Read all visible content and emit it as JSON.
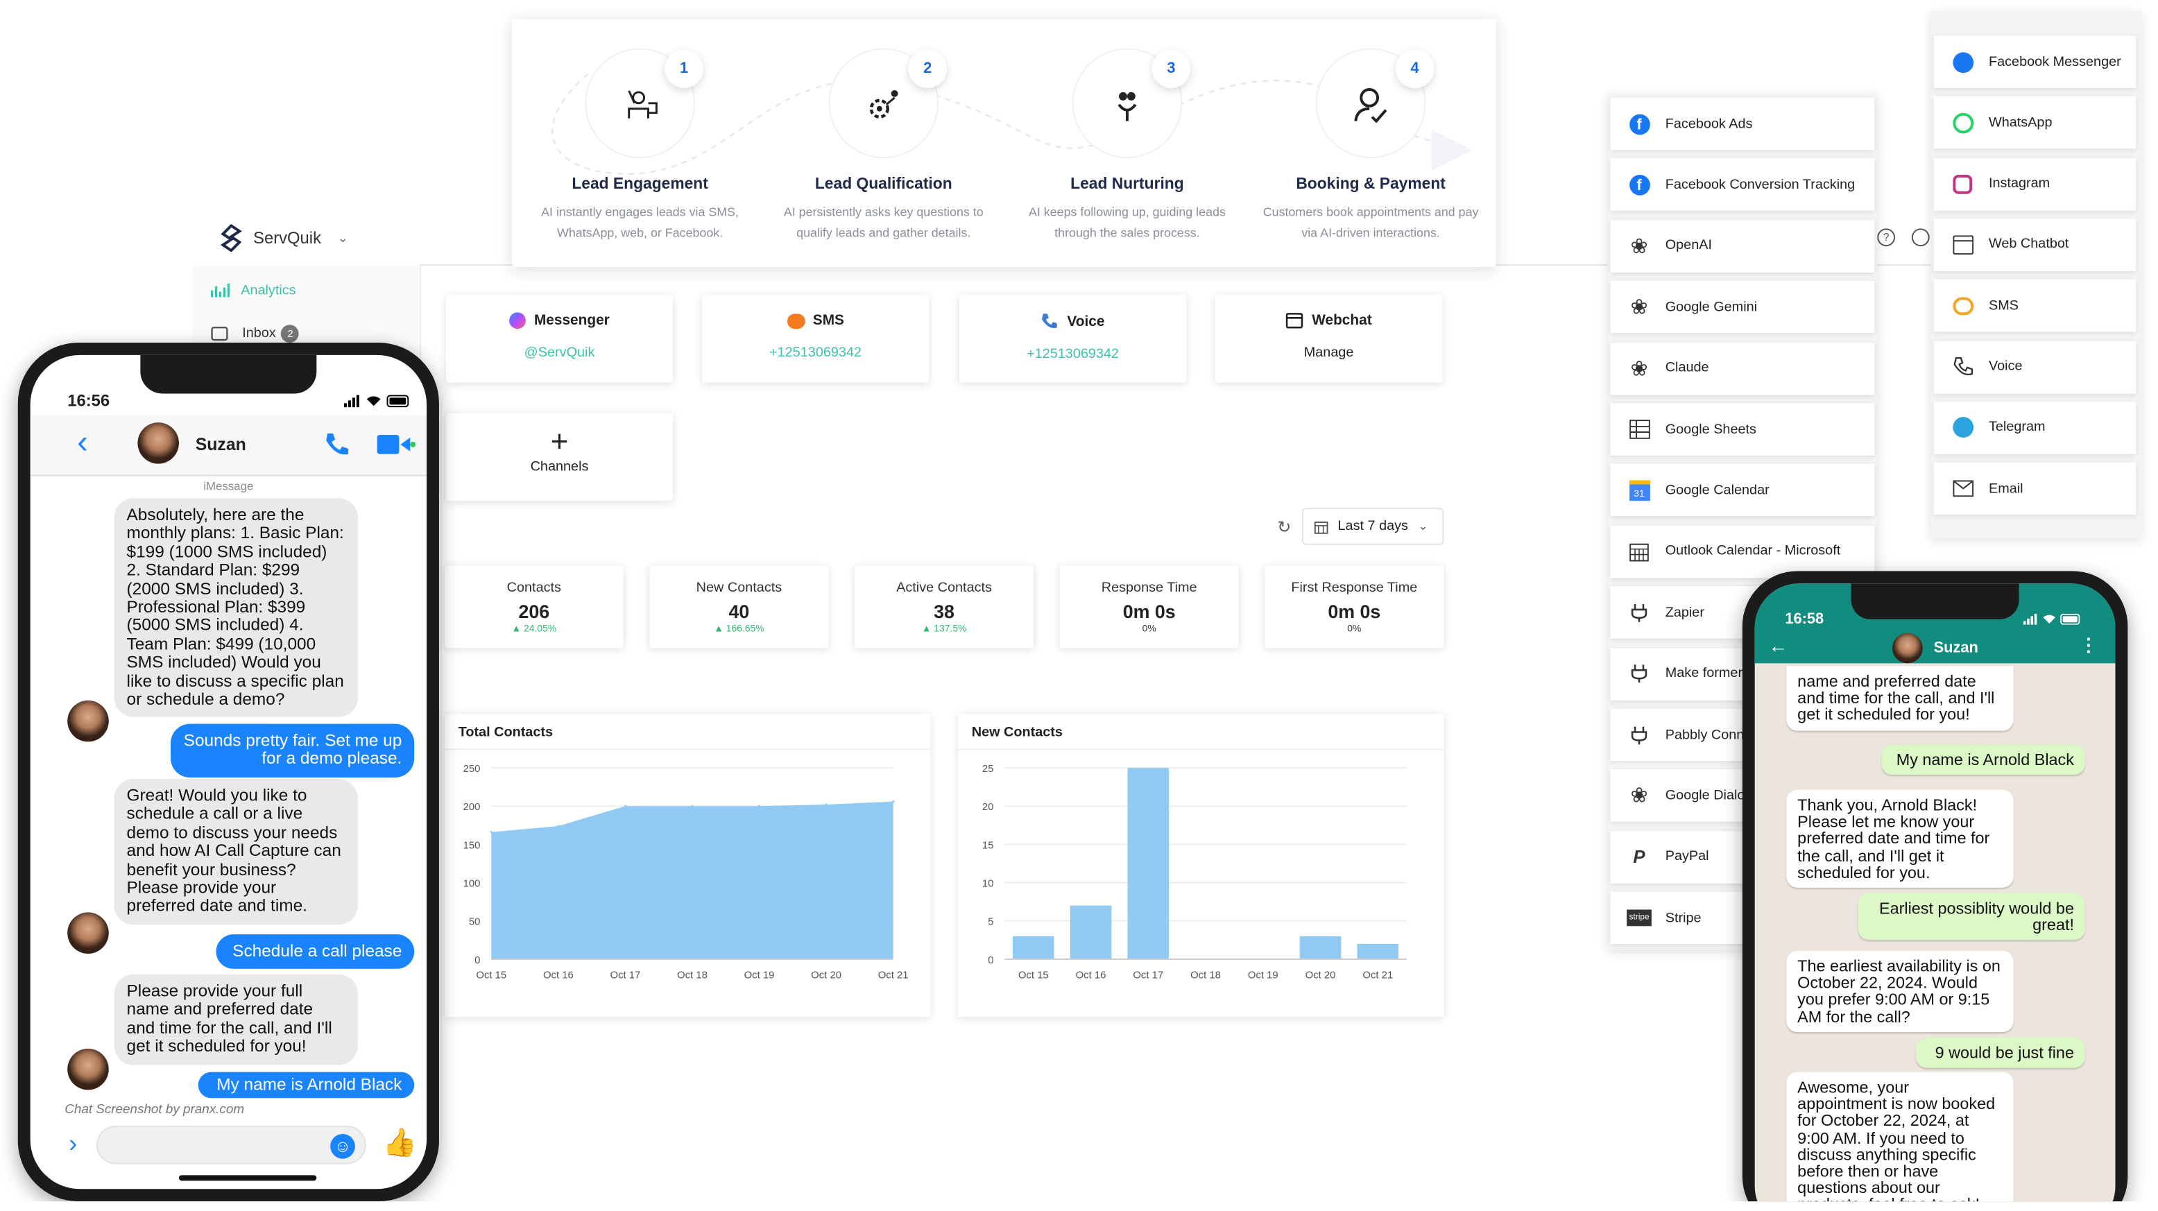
{
  "flow": {
    "steps": [
      {
        "num": "1",
        "title": "Lead Engagement",
        "desc": "AI instantly engages leads via SMS, WhatsApp, web, or Facebook."
      },
      {
        "num": "2",
        "title": "Lead Qualification",
        "desc": "AI persistently asks key questions to qualify leads and gather details."
      },
      {
        "num": "3",
        "title": "Lead Nurturing",
        "desc": "AI keeps following up, guiding leads through the sales process."
      },
      {
        "num": "4",
        "title": "Booking & Payment",
        "desc": "Customers book appointments and pay via AI-driven interactions."
      }
    ]
  },
  "app": {
    "brand": "ServQuik",
    "nav": {
      "analytics": "Analytics",
      "inbox": "Inbox",
      "inbox_badge": "2"
    }
  },
  "channels": [
    {
      "name": "Messenger",
      "value": "@ServQuik",
      "icon": "messenger-icon"
    },
    {
      "name": "SMS",
      "value": "+12513069342",
      "icon": "sms-icon"
    },
    {
      "name": "Voice",
      "value": "+12513069342",
      "icon": "phone-icon"
    },
    {
      "name": "Webchat",
      "value": "Manage",
      "icon": "webchat-icon"
    }
  ],
  "add_channel": {
    "symbol": "+",
    "label": "Channels"
  },
  "range": {
    "label": "Last 7 days"
  },
  "kpis": [
    {
      "label": "Contacts",
      "value": "206",
      "change": "24.05%"
    },
    {
      "label": "New Contacts",
      "value": "40",
      "change": "166.65%"
    },
    {
      "label": "Active Contacts",
      "value": "38",
      "change": "137.5%"
    },
    {
      "label": "Response Time",
      "value": "0m 0s",
      "change": "0%"
    },
    {
      "label": "First Response Time",
      "value": "0m 0s",
      "change": "0%"
    }
  ],
  "chart_data": [
    {
      "type": "area",
      "title": "Total Contacts",
      "x": [
        "Oct 15",
        "Oct 16",
        "Oct 17",
        "Oct 18",
        "Oct 19",
        "Oct 20",
        "Oct 21"
      ],
      "values": [
        166,
        174,
        200,
        200,
        200,
        202,
        206
      ],
      "ylim": [
        0,
        250
      ],
      "yticks": [
        0,
        50,
        100,
        150,
        200,
        250
      ],
      "color": "#90caf2",
      "grid": true
    },
    {
      "type": "bar",
      "title": "New Contacts",
      "categories": [
        "Oct 15",
        "Oct 16",
        "Oct 17",
        "Oct 18",
        "Oct 19",
        "Oct 20",
        "Oct 21"
      ],
      "values": [
        3,
        7,
        25,
        0,
        0,
        3,
        2
      ],
      "ylim": [
        0,
        25
      ],
      "yticks": [
        0,
        5,
        10,
        15,
        20,
        25
      ],
      "color": "#90caf2",
      "grid": true
    }
  ],
  "integrations_left": [
    {
      "name": "Facebook Ads",
      "icon": "facebook-icon"
    },
    {
      "name": "Facebook Conversion Tracking",
      "icon": "facebook-icon"
    },
    {
      "name": "OpenAI",
      "icon": "openai-icon"
    },
    {
      "name": "Google Gemini",
      "icon": "ai-icon"
    },
    {
      "name": "Claude",
      "icon": "ai-icon"
    },
    {
      "name": "Google Sheets",
      "icon": "sheets-icon"
    },
    {
      "name": "Google Calendar",
      "icon": "google-calendar-icon"
    },
    {
      "name": "Outlook Calendar - Microsoft",
      "icon": "calendar-icon"
    },
    {
      "name": "Zapier",
      "icon": "plug-icon"
    },
    {
      "name": "Make formerl",
      "icon": "plug-icon"
    },
    {
      "name": "Pabbly Conn",
      "icon": "plug-icon"
    },
    {
      "name": "Google Dialo",
      "icon": "ai-icon"
    },
    {
      "name": "PayPal",
      "icon": "paypal-icon"
    },
    {
      "name": "Stripe",
      "icon": "stripe-icon"
    }
  ],
  "integrations_right": [
    {
      "name": "Facebook Messenger",
      "icon": "messenger-icon"
    },
    {
      "name": "WhatsApp",
      "icon": "whatsapp-icon"
    },
    {
      "name": "Instagram",
      "icon": "instagram-icon"
    },
    {
      "name": "Web Chatbot",
      "icon": "webchat-icon"
    },
    {
      "name": "SMS",
      "icon": "sms-icon"
    },
    {
      "name": "Voice",
      "icon": "phone-icon"
    },
    {
      "name": "Telegram",
      "icon": "telegram-icon"
    },
    {
      "name": "Email",
      "icon": "email-icon"
    }
  ],
  "imessage": {
    "time": "16:56",
    "contact": "Suzan",
    "service": "iMessage",
    "footer": "Chat Screenshot by pranx.com",
    "messages": [
      {
        "from": "in",
        "text": "Absolutely, here are the monthly plans: 1. Basic Plan: $199 (1000 SMS included) 2. Standard Plan: $299 (2000 SMS included) 3. Professional Plan: $399 (5000 SMS included) 4. Team Plan: $499 (10,000 SMS included) Would you like to discuss a specific plan or schedule a demo?"
      },
      {
        "from": "out",
        "text": "Sounds pretty fair. Set me up for a demo please."
      },
      {
        "from": "in",
        "text": "Great! Would you like to schedule a call or a live demo to discuss your needs and how AI Call Capture can benefit your business? Please provide your preferred date and time."
      },
      {
        "from": "out",
        "text": "Schedule a call please"
      },
      {
        "from": "in",
        "text": "Please provide your full name and preferred date and time for the call, and I'll get it scheduled for you!"
      },
      {
        "from": "out",
        "text": "My name is Arnold Black"
      }
    ]
  },
  "whatsapp": {
    "time": "16:58",
    "contact": "Suzan",
    "messages": [
      {
        "from": "in",
        "text": "name and preferred date and time for the call, and I'll get it scheduled for you!"
      },
      {
        "from": "out",
        "text": "My name is Arnold Black"
      },
      {
        "from": "in",
        "text": "Thank you, Arnold Black! Please let me know your preferred date and time for the call, and I'll get it scheduled for you."
      },
      {
        "from": "out",
        "text": "Earliest possiblity would be great!"
      },
      {
        "from": "in",
        "text": "The earliest availability is on October 22, 2024. Would you prefer 9:00 AM or 9:15 AM for the call?"
      },
      {
        "from": "out",
        "text": "9 would be just fine"
      },
      {
        "from": "in",
        "text": "Awesome, your appointment is now booked for October 22, 2024, at 9:00 AM. If you need to discuss anything specific before then or have questions about our products, feel free to ask!"
      }
    ]
  }
}
